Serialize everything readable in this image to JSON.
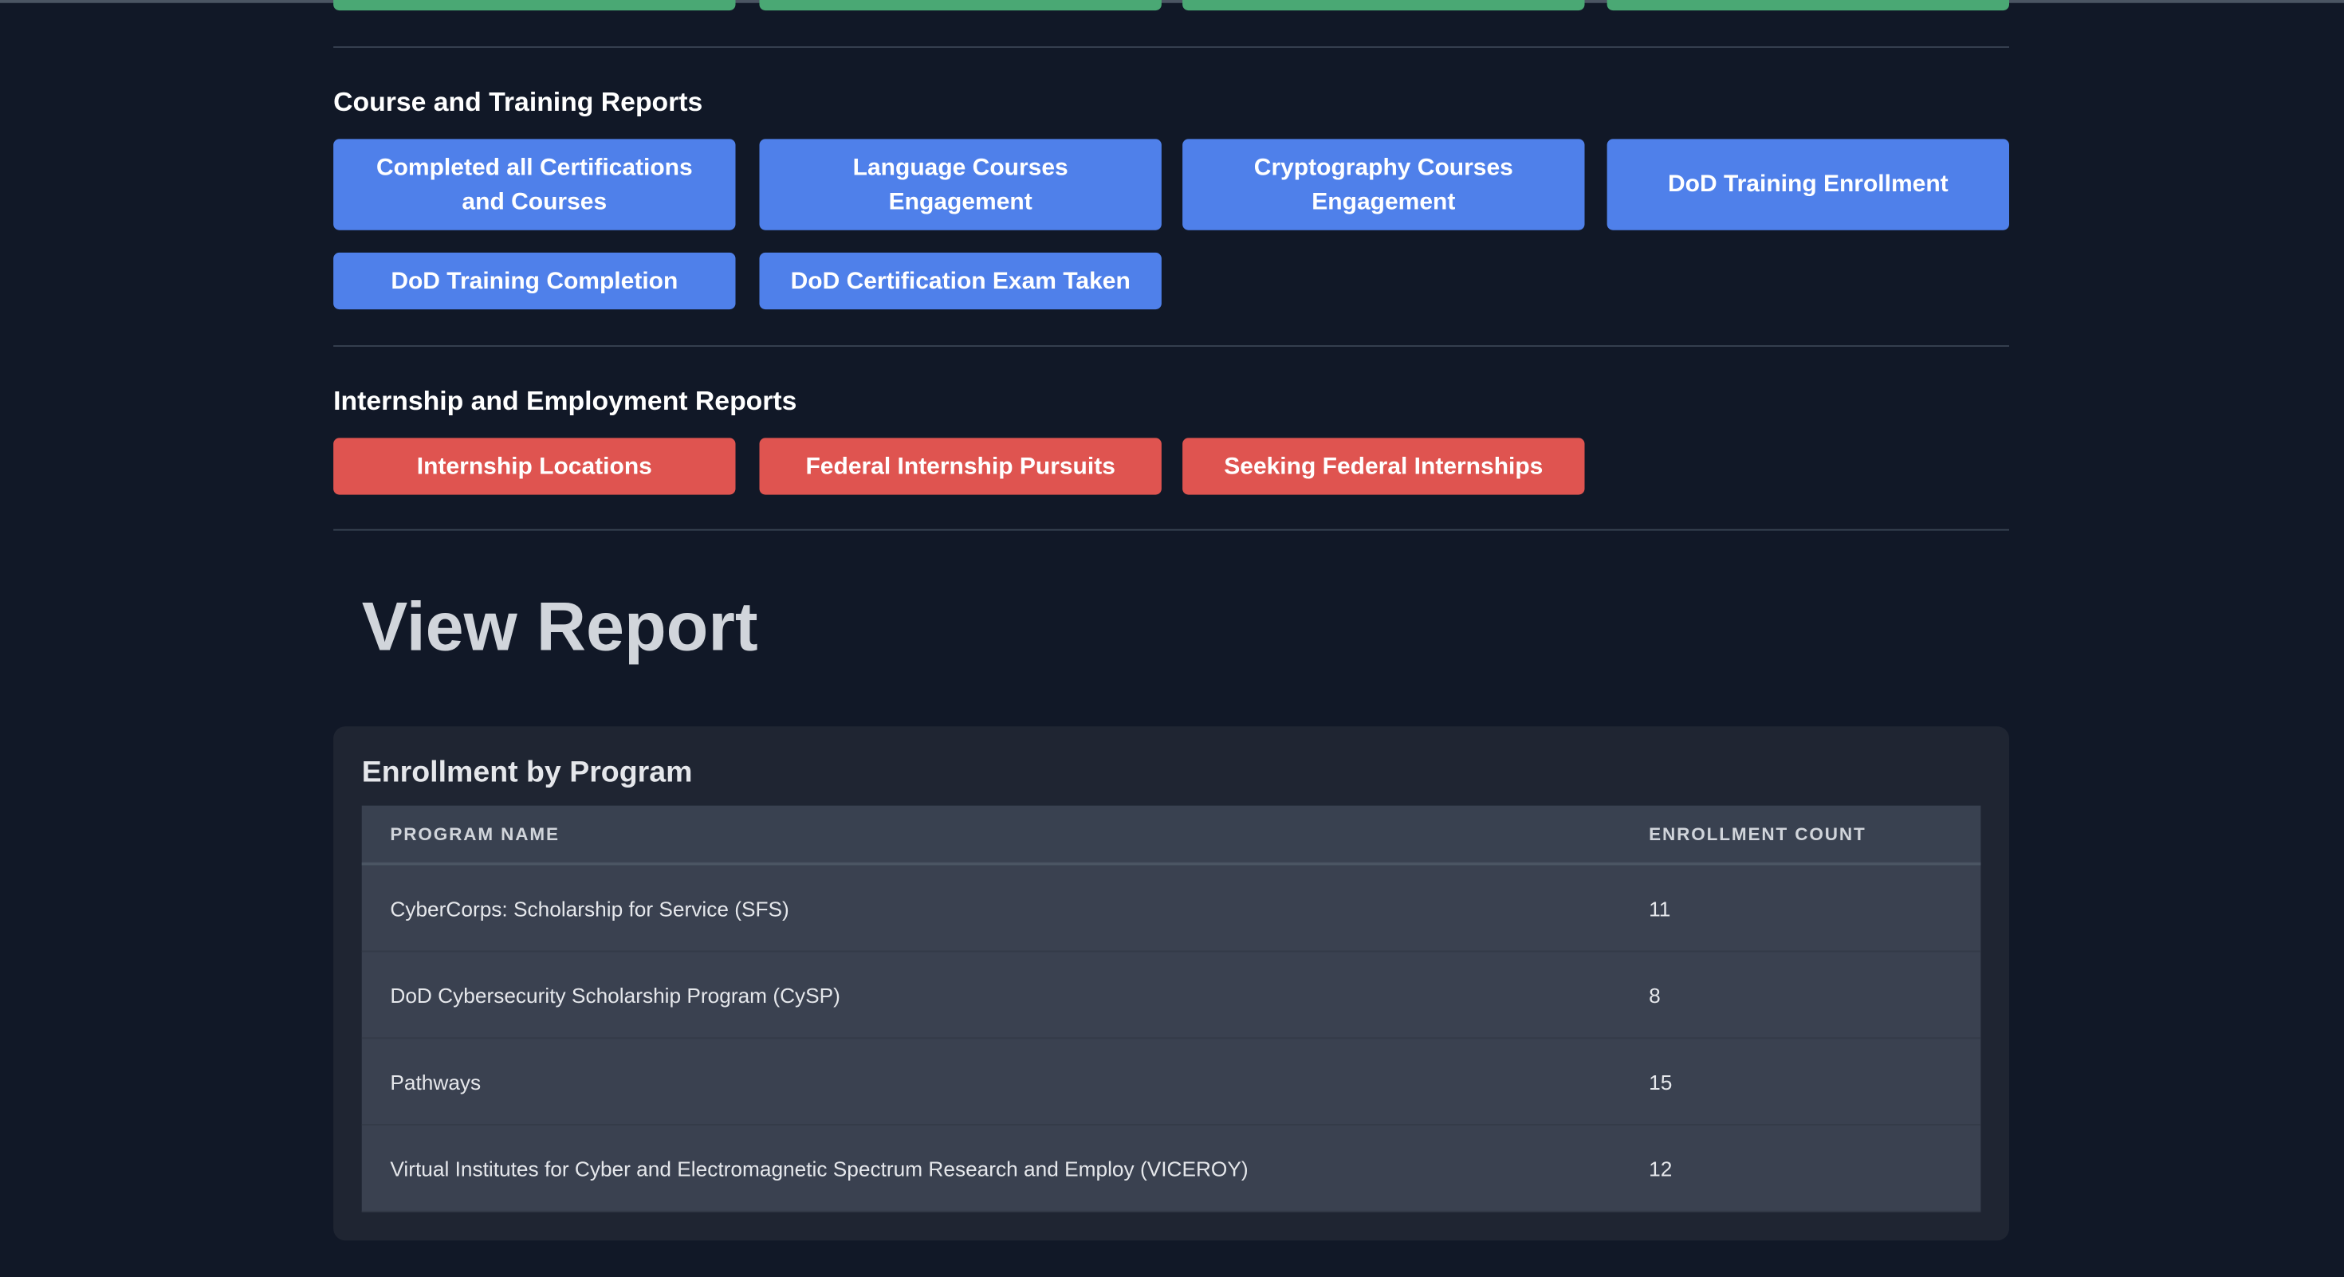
{
  "sections": [
    {
      "title": "Course and Training Reports",
      "buttons": [
        "Completed all Certifications and Courses",
        "Language Courses Engagement",
        "Cryptography Courses Engagement",
        "DoD Training Enrollment",
        "DoD Training Completion",
        "DoD Certification Exam Taken"
      ]
    },
    {
      "title": "Internship and Employment Reports",
      "buttons": [
        "Internship Locations",
        "Federal Internship Pursuits",
        "Seeking Federal Internships"
      ]
    }
  ],
  "report": {
    "heading": "View Report",
    "table_title": "Enrollment by Program",
    "table": {
      "headers": [
        "PROGRAM NAME",
        "ENROLLMENT COUNT"
      ],
      "rows": [
        [
          "CyberCorps: Scholarship for Service (SFS)",
          "11"
        ],
        [
          "DoD Cybersecurity Scholarship Program (CySP)",
          "8"
        ],
        [
          "Pathways",
          "15"
        ],
        [
          "Virtual Institutes for Cyber and Electromagnetic Spectrum Research and Employ (VICEROY)",
          "12"
        ]
      ]
    }
  }
}
